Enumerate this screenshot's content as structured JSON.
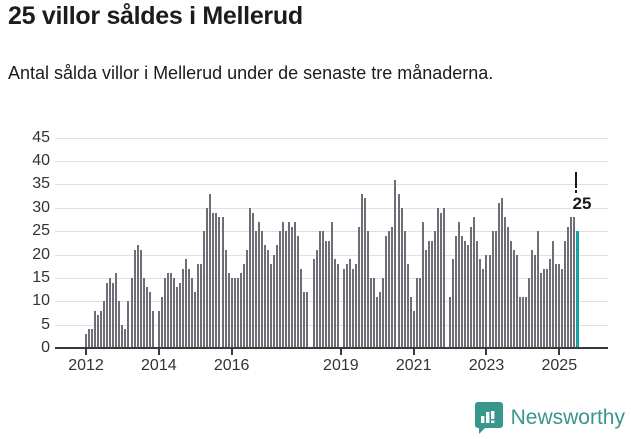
{
  "header": {
    "title": "25 villor såldes i Mellerud",
    "subtitle": "Antal sålda villor i Mellerud under de senaste tre månaderna."
  },
  "chart_data": {
    "type": "bar",
    "title": "Antal sålda villor i Mellerud under de senaste tre månaderna",
    "xlabel": "",
    "ylabel": "",
    "frequency": "monthly",
    "x_start": "2012-01",
    "x_end": "2025-07",
    "ylim": [
      0,
      45
    ],
    "y_ticks": [
      0,
      5,
      10,
      15,
      20,
      25,
      30,
      35,
      40,
      45
    ],
    "grid": "horizontal",
    "x_ticks": [
      {
        "label": "2012",
        "month_index": 0
      },
      {
        "label": "2014",
        "month_index": 24
      },
      {
        "label": "2016",
        "month_index": 48
      },
      {
        "label": "2019",
        "month_index": 84
      },
      {
        "label": "2021",
        "month_index": 108
      },
      {
        "label": "2023",
        "month_index": 132
      },
      {
        "label": "2025",
        "month_index": 156
      }
    ],
    "values": [
      3,
      4,
      4,
      8,
      7,
      8,
      10,
      14,
      15,
      14,
      16,
      10,
      5,
      4,
      10,
      15,
      21,
      22,
      21,
      15,
      13,
      12,
      8,
      0,
      8,
      11,
      15,
      16,
      16,
      15,
      13,
      14,
      17,
      19,
      17,
      15,
      12,
      18,
      18,
      25,
      30,
      33,
      29,
      29,
      28,
      28,
      21,
      16,
      15,
      15,
      15,
      16,
      18,
      21,
      30,
      29,
      25,
      27,
      25,
      22,
      21,
      18,
      20,
      22,
      25,
      27,
      25,
      27,
      26,
      27,
      24,
      17,
      12,
      12,
      0,
      19,
      21,
      25,
      25,
      23,
      23,
      27,
      19,
      18,
      0,
      17,
      18,
      19,
      17,
      18,
      26,
      33,
      32,
      25,
      15,
      15,
      11,
      12,
      15,
      24,
      25,
      26,
      36,
      33,
      30,
      25,
      18,
      11,
      8,
      15,
      15,
      27,
      21,
      23,
      23,
      25,
      30,
      29,
      30,
      0,
      11,
      19,
      24,
      27,
      24,
      23,
      22,
      26,
      28,
      23,
      19,
      17,
      20,
      20,
      25,
      25,
      31,
      32,
      28,
      26,
      23,
      21,
      20,
      11,
      11,
      11,
      15,
      21,
      20,
      25,
      16,
      17,
      17,
      19,
      23,
      18,
      18,
      17,
      23,
      26,
      28,
      28,
      25
    ],
    "highlight_last": true,
    "annotation": {
      "text": "25",
      "value": 25,
      "target": "last-bar"
    },
    "colors": {
      "bar": "#6e6e77",
      "highlight": "#13a3a3",
      "grid": "#e0e0e0",
      "axis": "#3a3a3a",
      "text": "#333333"
    }
  },
  "footer": {
    "brand": "Newsworthy",
    "brand_color": "#38968c",
    "logo_icon": "bar-chart-speech-bubble-icon"
  }
}
